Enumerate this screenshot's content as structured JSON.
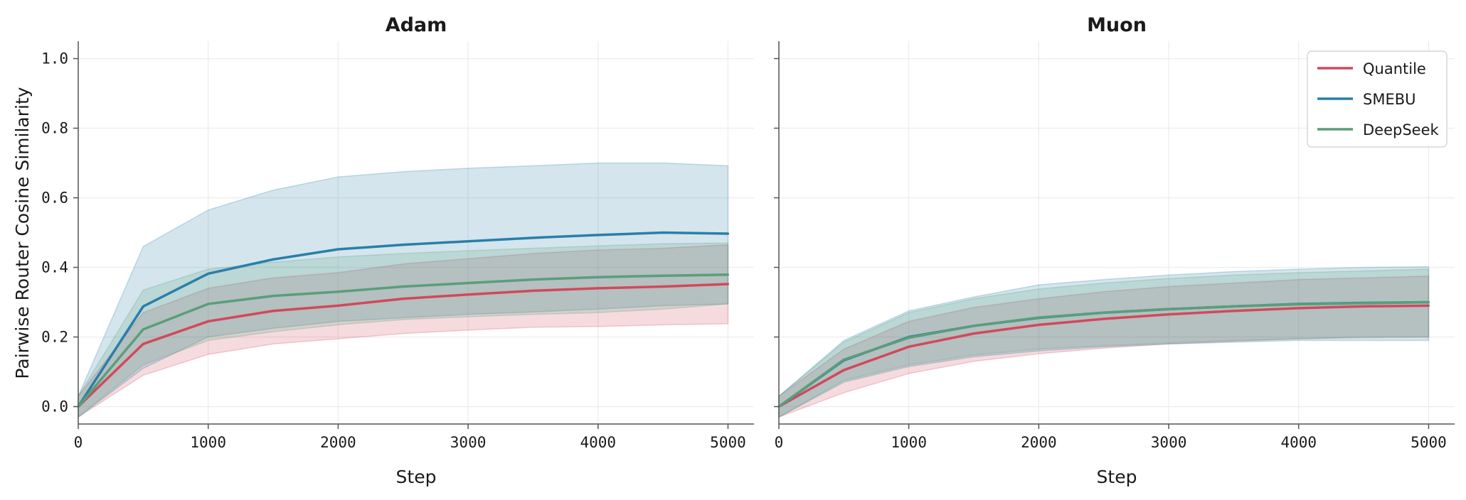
{
  "chart_data": {
    "type": "line",
    "ylabel": "Pairwise Router Cosine Similarity",
    "ylim": [
      -0.05,
      1.05
    ],
    "xlim": [
      0,
      5200
    ],
    "yticks": [
      0.0,
      0.2,
      0.4,
      0.6,
      0.8,
      1.0
    ],
    "ytick_labels": [
      "0.0",
      "0.2",
      "0.4",
      "0.6",
      "0.8",
      "1.0"
    ],
    "xticks": [
      0,
      1000,
      2000,
      3000,
      4000,
      5000
    ],
    "xtick_labels": [
      "0",
      "1000",
      "2000",
      "3000",
      "4000",
      "5000"
    ],
    "grid": true,
    "legend_position": "top-right",
    "series_colors": {
      "Quantile": "#d1495b",
      "SMEBU": "#2a7fa8",
      "DeepSeek": "#5a9e7a"
    },
    "panels": [
      {
        "title": "Adam",
        "xlabel": "Step",
        "x": [
          0,
          500,
          1000,
          1500,
          2000,
          2500,
          3000,
          3500,
          4000,
          4500,
          5000
        ],
        "series": [
          {
            "name": "Quantile",
            "values": [
              0.0,
              0.18,
              0.245,
              0.275,
              0.29,
              0.31,
              0.322,
              0.333,
              0.34,
              0.345,
              0.352
            ],
            "lower": [
              -0.03,
              0.09,
              0.15,
              0.18,
              0.195,
              0.21,
              0.22,
              0.228,
              0.23,
              0.235,
              0.238
            ],
            "upper": [
              0.03,
              0.27,
              0.34,
              0.37,
              0.385,
              0.41,
              0.425,
              0.44,
              0.45,
              0.455,
              0.465
            ]
          },
          {
            "name": "SMEBU",
            "values": [
              0.0,
              0.288,
              0.382,
              0.423,
              0.452,
              0.465,
              0.475,
              0.485,
              0.493,
              0.5,
              0.497
            ],
            "lower": [
              -0.03,
              0.11,
              0.2,
              0.225,
              0.245,
              0.255,
              0.265,
              0.272,
              0.28,
              0.29,
              0.295
            ],
            "upper": [
              0.03,
              0.46,
              0.565,
              0.622,
              0.66,
              0.675,
              0.685,
              0.692,
              0.7,
              0.7,
              0.692
            ]
          },
          {
            "name": "DeepSeek",
            "values": [
              0.0,
              0.222,
              0.295,
              0.318,
              0.33,
              0.345,
              0.355,
              0.365,
              0.372,
              0.376,
              0.379
            ],
            "lower": [
              -0.03,
              0.12,
              0.19,
              0.215,
              0.235,
              0.25,
              0.258,
              0.265,
              0.27,
              0.28,
              0.295
            ],
            "upper": [
              0.03,
              0.335,
              0.395,
              0.415,
              0.43,
              0.44,
              0.448,
              0.455,
              0.462,
              0.468,
              0.47
            ]
          }
        ]
      },
      {
        "title": "Muon",
        "xlabel": "Step",
        "x": [
          0,
          500,
          1000,
          1500,
          2000,
          2500,
          3000,
          3500,
          4000,
          4500,
          5000
        ],
        "series": [
          {
            "name": "Quantile",
            "values": [
              0.0,
              0.105,
              0.172,
              0.21,
              0.235,
              0.252,
              0.265,
              0.275,
              0.283,
              0.288,
              0.29
            ],
            "lower": [
              -0.03,
              0.04,
              0.095,
              0.13,
              0.152,
              0.168,
              0.18,
              0.188,
              0.195,
              0.2,
              0.2
            ],
            "upper": [
              0.03,
              0.165,
              0.245,
              0.285,
              0.31,
              0.33,
              0.345,
              0.355,
              0.365,
              0.37,
              0.375
            ]
          },
          {
            "name": "SMEBU",
            "values": [
              0.0,
              0.133,
              0.2,
              0.232,
              0.255,
              0.27,
              0.28,
              0.288,
              0.295,
              0.298,
              0.3
            ],
            "lower": [
              -0.03,
              0.07,
              0.115,
              0.143,
              0.16,
              0.172,
              0.18,
              0.185,
              0.19,
              0.19,
              0.19
            ],
            "upper": [
              0.03,
              0.19,
              0.275,
              0.315,
              0.35,
              0.365,
              0.378,
              0.388,
              0.395,
              0.4,
              0.402
            ]
          },
          {
            "name": "DeepSeek",
            "values": [
              0.0,
              0.135,
              0.198,
              0.232,
              0.256,
              0.27,
              0.28,
              0.288,
              0.294,
              0.297,
              0.3
            ],
            "lower": [
              -0.03,
              0.075,
              0.12,
              0.148,
              0.165,
              0.175,
              0.183,
              0.19,
              0.195,
              0.198,
              0.2
            ],
            "upper": [
              0.03,
              0.185,
              0.27,
              0.31,
              0.338,
              0.355,
              0.368,
              0.378,
              0.385,
              0.39,
              0.395
            ]
          }
        ]
      }
    ]
  }
}
